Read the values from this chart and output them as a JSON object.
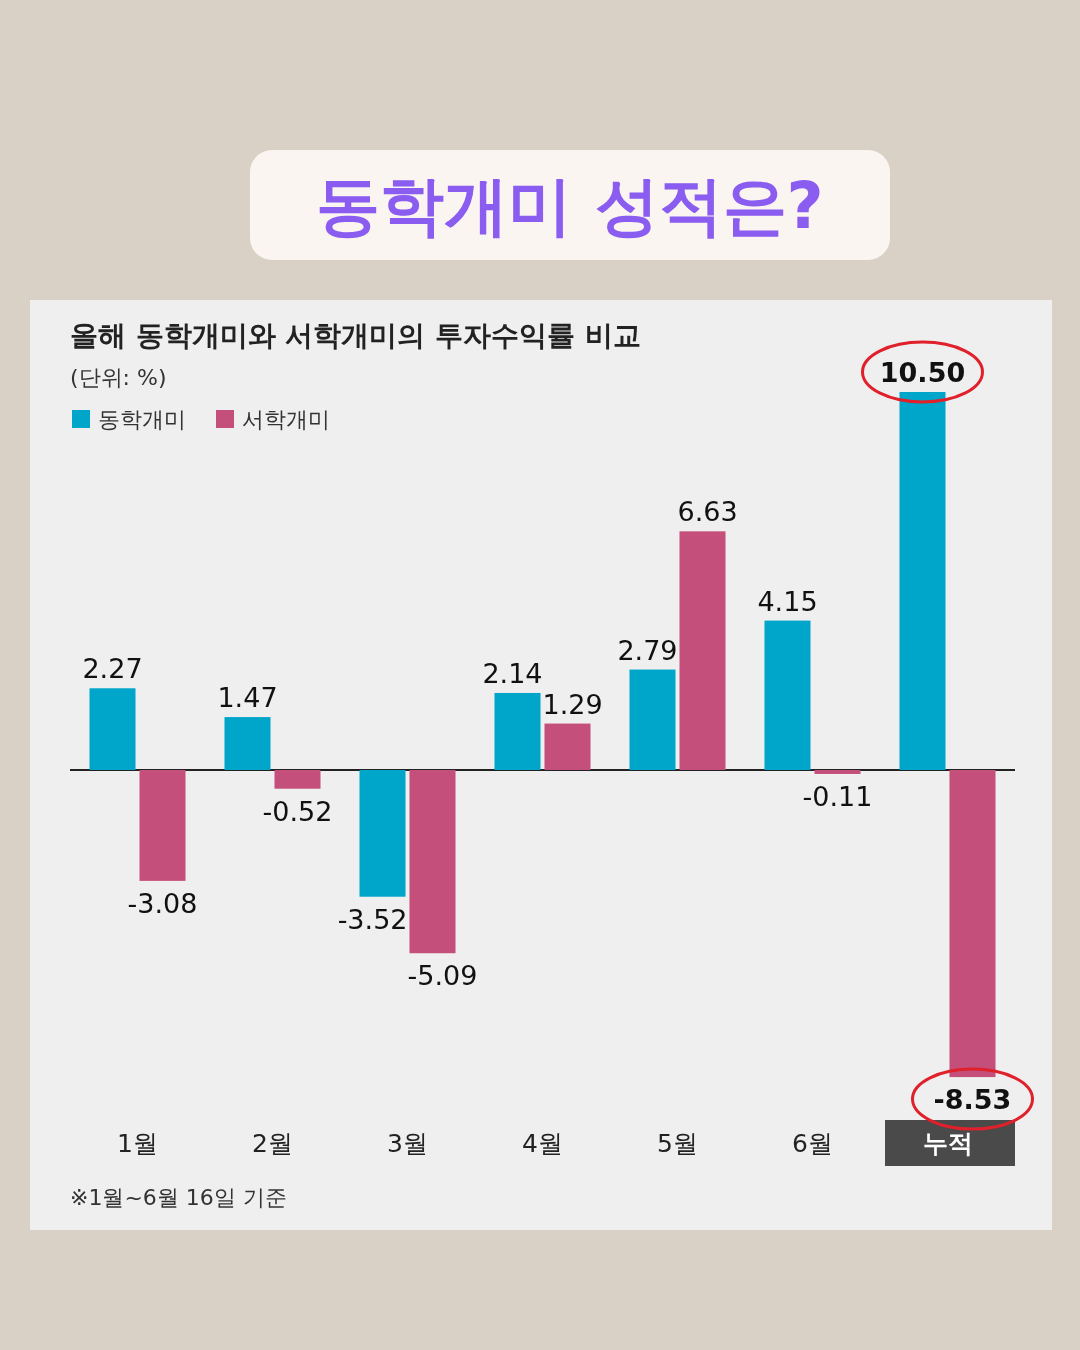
{
  "chart_data": {
    "type": "bar",
    "title": "동학개미 성적은?",
    "subtitle": "올해 동학개미와 서학개미의 투자수익률 비교",
    "ylabel": "(단위: %)",
    "categories": [
      "1월",
      "2월",
      "3월",
      "4월",
      "5월",
      "6월",
      "누적"
    ],
    "series": [
      {
        "name": "동학개미",
        "color": "#00a6c9",
        "values": [
          2.27,
          1.47,
          -3.52,
          2.14,
          2.79,
          4.15,
          10.5
        ],
        "value_labels": [
          "2.27",
          "1.47",
          "-3.52",
          "2.14",
          "2.79",
          "4.15",
          "10.50"
        ]
      },
      {
        "name": "서학개미",
        "color": "#c44f7a",
        "values": [
          -3.08,
          -0.52,
          -5.09,
          1.29,
          6.63,
          -0.11,
          -8.53
        ],
        "value_labels": [
          "-3.08",
          "-0.52",
          "-5.09",
          "1.29",
          "6.63",
          "-0.11",
          "-8.53"
        ]
      }
    ],
    "legend": "top left",
    "annotations": [
      "※1월~6월 16일 기준"
    ]
  }
}
